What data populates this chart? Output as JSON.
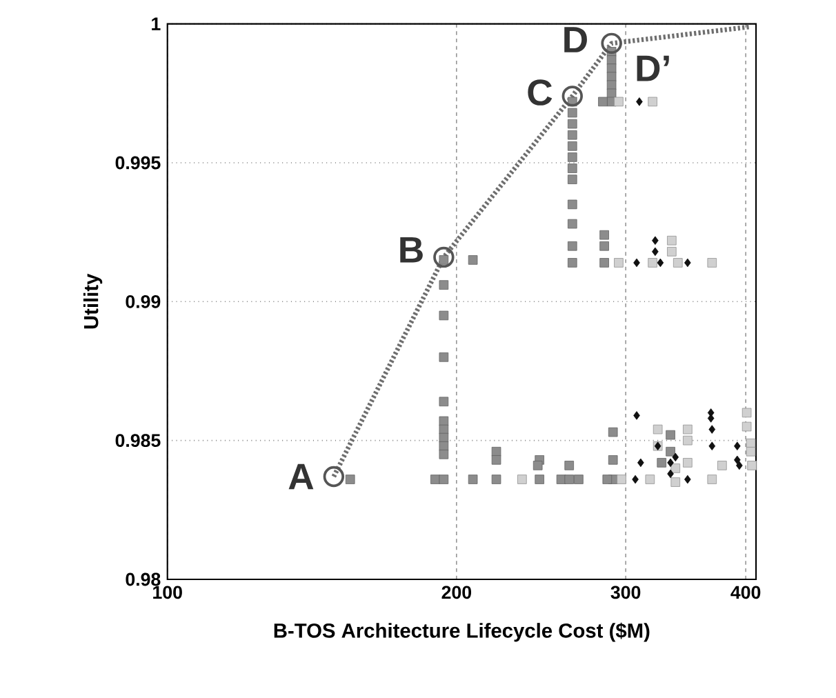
{
  "chart_data": {
    "type": "scatter",
    "xlabel": "B-TOS Architecture Lifecycle Cost ($M)",
    "ylabel": "Utility",
    "log": "x",
    "grid": true,
    "xlim": [
      100,
      410
    ],
    "ylim": [
      0.98,
      1
    ],
    "xticks": [
      100,
      200,
      300,
      400
    ],
    "yticks": [
      0.98,
      0.985,
      0.99,
      0.995,
      1
    ],
    "series": [
      {
        "type": "line",
        "color": "#6e6e6e",
        "line_style": "dotted",
        "marker": "none",
        "x": [
          149,
          194,
          264,
          290,
          405
        ],
        "values": [
          0.9837,
          0.9916,
          0.9974,
          0.9993,
          0.9999
        ]
      },
      {
        "color": "#8c8c8c",
        "marker": "square",
        "x": [
          155,
          194,
          194,
          194,
          194,
          194,
          194,
          194,
          194,
          194,
          194,
          190,
          194,
          208,
          208,
          220,
          220,
          220,
          244,
          244,
          243,
          264,
          264,
          264,
          264,
          264,
          264,
          264,
          264,
          264,
          264,
          264,
          264,
          257,
          262,
          268,
          262,
          290,
          290,
          290,
          290,
          290,
          290,
          290,
          284,
          285,
          285,
          285,
          291,
          291,
          291,
          287,
          327,
          334,
          334
        ],
        "values": [
          0.9836,
          0.9915,
          0.9906,
          0.9895,
          0.988,
          0.9864,
          0.9857,
          0.9854,
          0.9851,
          0.9848,
          0.9845,
          0.9836,
          0.9836,
          0.9915,
          0.9836,
          0.9846,
          0.9843,
          0.9836,
          0.9843,
          0.9836,
          0.9841,
          0.9972,
          0.9968,
          0.9964,
          0.996,
          0.9956,
          0.9952,
          0.9948,
          0.9944,
          0.9935,
          0.9928,
          0.992,
          0.9914,
          0.9836,
          0.9836,
          0.9836,
          0.9841,
          0.999,
          0.9987,
          0.9984,
          0.9981,
          0.9978,
          0.9975,
          0.9972,
          0.9972,
          0.9924,
          0.992,
          0.9914,
          0.9853,
          0.9843,
          0.9836,
          0.9836,
          0.9842,
          0.9852,
          0.9846
        ]
      },
      {
        "color": "#d0d0d0",
        "marker": "square",
        "x": [
          295,
          320,
          295,
          320,
          335,
          335,
          340,
          369,
          297,
          318,
          324,
          324,
          338,
          338,
          348,
          348,
          348,
          369,
          378,
          401,
          401,
          405,
          405,
          406,
          234
        ],
        "values": [
          0.9972,
          0.9972,
          0.9914,
          0.9914,
          0.9922,
          0.9918,
          0.9914,
          0.9914,
          0.9836,
          0.9836,
          0.9854,
          0.9848,
          0.984,
          0.9835,
          0.9854,
          0.985,
          0.9842,
          0.9836,
          0.9841,
          0.986,
          0.9855,
          0.9849,
          0.9846,
          0.9841,
          0.9836
        ]
      },
      {
        "color": "#111111",
        "marker": "diamond",
        "x": [
          310,
          308,
          322,
          322,
          326,
          348,
          308,
          311,
          307,
          324,
          334,
          334,
          338,
          348,
          368,
          368,
          369,
          369,
          392,
          392,
          394
        ],
        "values": [
          0.9972,
          0.9914,
          0.9922,
          0.9918,
          0.9914,
          0.9914,
          0.9859,
          0.9842,
          0.9836,
          0.9848,
          0.9842,
          0.9838,
          0.9844,
          0.9836,
          0.986,
          0.9858,
          0.9854,
          0.9848,
          0.9848,
          0.9843,
          0.9841
        ]
      },
      {
        "color": "#555555",
        "marker": "circle",
        "x": [
          149,
          194,
          264,
          290
        ],
        "values": [
          0.9837,
          0.9916,
          0.9974,
          0.9993
        ]
      }
    ],
    "annotations": [
      {
        "text": "A",
        "x": 149,
        "y": 0.9837
      },
      {
        "text": "B",
        "x": 194,
        "y": 0.9916
      },
      {
        "text": "C",
        "x": 264,
        "y": 0.9974
      },
      {
        "text": "D",
        "x": 290,
        "y": 0.9993
      },
      {
        "text": "D’",
        "x": 290,
        "y": 0.9984
      }
    ]
  }
}
